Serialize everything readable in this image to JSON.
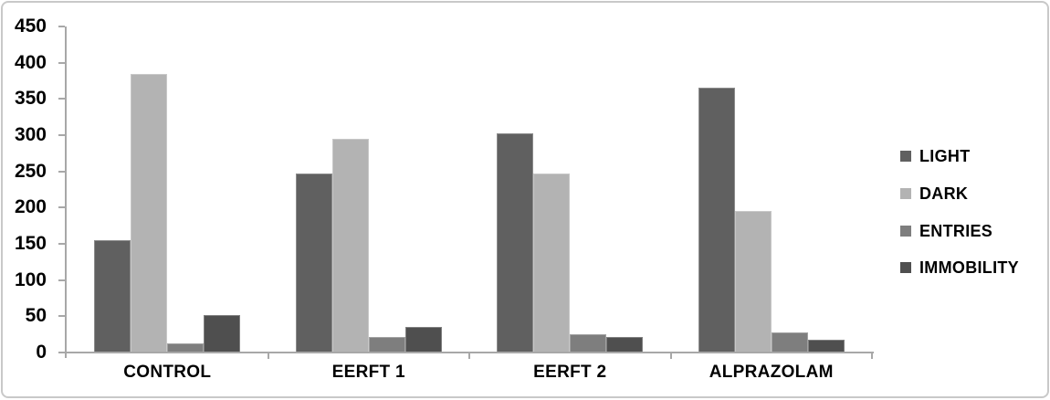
{
  "figure": {
    "background": "#ffffff",
    "border_color": "#c9c9c9"
  },
  "chart_data": {
    "type": "bar",
    "title": "",
    "xlabel": "",
    "ylabel": "",
    "categories": [
      "CONTROL",
      "EERFT 1",
      "EERFT 2",
      "ALPRAZOLAM"
    ],
    "series": [
      {
        "name": "LIGHT",
        "color": "#606060",
        "values": [
          155,
          247,
          302,
          365
        ]
      },
      {
        "name": "DARK",
        "color": "#b3b3b3",
        "values": [
          385,
          295,
          247,
          195
        ]
      },
      {
        "name": "ENTRIES",
        "color": "#7e7e7e",
        "values": [
          12,
          22,
          25,
          28
        ]
      },
      {
        "name": "IMMOBILITY",
        "color": "#4f4f4f",
        "values": [
          52,
          35,
          22,
          18
        ]
      }
    ],
    "ylim": [
      0,
      450
    ],
    "ytick_step": 50,
    "yticks": [
      0,
      50,
      100,
      150,
      200,
      250,
      300,
      350,
      400,
      450
    ],
    "grid": false,
    "legend_position": "right",
    "axis_color": "#a8a8a8",
    "text_color": "#000000"
  }
}
